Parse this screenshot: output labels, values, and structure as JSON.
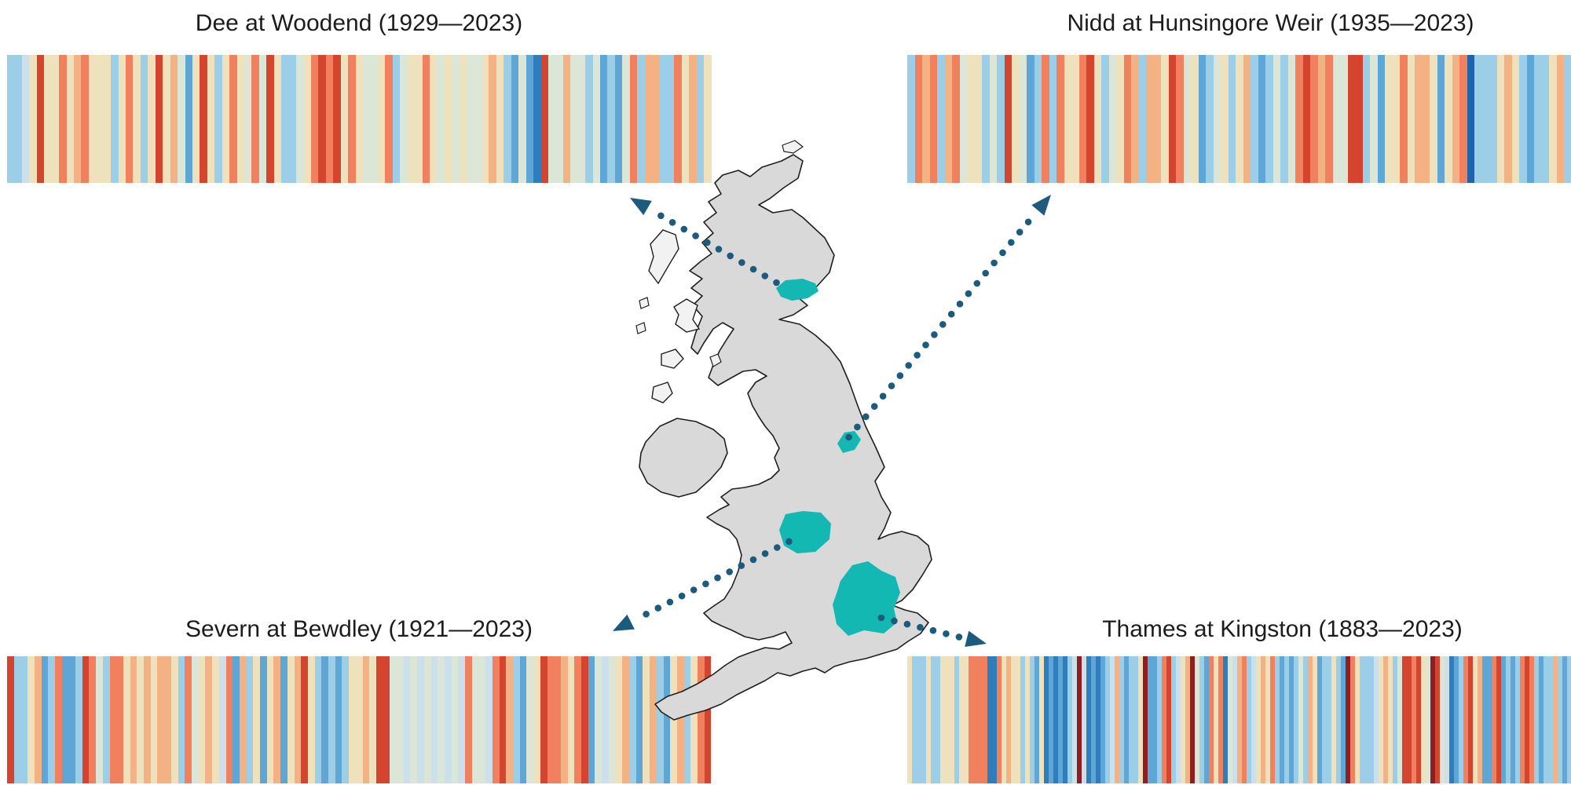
{
  "figure": {
    "title_color": "#1c1c1c",
    "background": "#ffffff",
    "arrow_color": "#1d5b7e",
    "map": {
      "land_fill": "#d9d9d9",
      "island_fill": "#f2f2f2",
      "coast_stroke": "#1f1f1f",
      "catchment_fill": "#14b8b2",
      "catchments": [
        "dee",
        "nidd",
        "severn",
        "thames"
      ]
    },
    "arrows": [
      {
        "from": "dee-catchment",
        "to": "dee-chart"
      },
      {
        "from": "nidd-catchment",
        "to": "nidd-chart"
      },
      {
        "from": "severn-catchment",
        "to": "severn-chart"
      },
      {
        "from": "thames-catchment",
        "to": "thames-chart"
      }
    ]
  },
  "palette": {
    "R4": "#8f1d21",
    "R3": "#d5442e",
    "R2": "#f0805e",
    "R1": "#f4b183",
    "C": "#efe1bb",
    "G": "#dbe6d6",
    "B0": "#cbe0eb",
    "B1": "#9ccee7",
    "B2": "#5da6d6",
    "B3": "#2f7dba",
    "B4": "#2163ab"
  },
  "chart_data": [
    {
      "type": "stripes",
      "id": "dee",
      "title": "Dee at Woodend (1929—2023)",
      "station": "Dee at Woodend",
      "start_year": 1929,
      "end_year": 2023,
      "n_years": 95,
      "stripes": [
        "B1",
        "B1",
        "B0",
        "C",
        "R3",
        "C",
        "C",
        "R2",
        "C",
        "R1",
        "R2",
        "C",
        "C",
        "C",
        "B1",
        "C",
        "R2",
        "C",
        "B1",
        "C",
        "R3",
        "C",
        "R1",
        "G",
        "B2",
        "C",
        "R3",
        "C",
        "B1",
        "C",
        "R2",
        "C",
        "G",
        "R2",
        "G",
        "R3",
        "C",
        "B1",
        "B1",
        "G",
        "C",
        "R2",
        "R3",
        "R2",
        "R3",
        "C",
        "R2",
        "C",
        "G",
        "G",
        "C",
        "R2",
        "B1",
        "G",
        "C",
        "C",
        "R2",
        "C",
        "G",
        "C",
        "G",
        "C",
        "G",
        "G",
        "C",
        "R1",
        "C",
        "B1",
        "B2",
        "G",
        "B2",
        "B3",
        "R3",
        "G",
        "G",
        "R1",
        "G",
        "G",
        "B1",
        "G",
        "B2",
        "B1",
        "B2",
        "G",
        "R2",
        "B1",
        "R1",
        "R1",
        "B1",
        "B1",
        "R2",
        "C",
        "R1",
        "B1",
        "C"
      ]
    },
    {
      "type": "stripes",
      "id": "nidd",
      "title": "Nidd at Hunsingore Weir (1935—2023)",
      "station": "Nidd at Hunsingore Weir",
      "start_year": 1935,
      "end_year": 2023,
      "n_years": 89,
      "stripes": [
        "B1",
        "R2",
        "R1",
        "R2",
        "B1",
        "R1",
        "R2",
        "G",
        "C",
        "C",
        "B1",
        "G",
        "B1",
        "R3",
        "C",
        "G",
        "B2",
        "B1",
        "R2",
        "B1",
        "R2",
        "C",
        "C",
        "R2",
        "R3",
        "C",
        "B1",
        "G",
        "C",
        "R2",
        "R1",
        "B1",
        "R1",
        "R1",
        "C",
        "R3",
        "R2",
        "G",
        "C",
        "B2",
        "B1",
        "G",
        "C",
        "B1",
        "C",
        "R1",
        "B1",
        "B2",
        "B1",
        "G",
        "B1",
        "G",
        "R2",
        "R3",
        "R2",
        "R1",
        "R2",
        "G",
        "G",
        "R3",
        "R3",
        "B1",
        "G",
        "B2",
        "C",
        "C",
        "R2",
        "C",
        "R1",
        "R1",
        "C",
        "B2",
        "C",
        "R1",
        "R2",
        "B4",
        "B1",
        "B1",
        "B1",
        "C",
        "R1",
        "C",
        "B1",
        "B2",
        "B1",
        "B1",
        "C",
        "R1",
        "B1"
      ]
    },
    {
      "type": "stripes",
      "id": "severn",
      "title": "Severn at Bewdley (1921—2023)",
      "station": "Severn at Bewdley",
      "start_year": 1921,
      "end_year": 2023,
      "n_years": 103,
      "stripes": [
        "R3",
        "B1",
        "B1",
        "C",
        "R1",
        "B2",
        "B1",
        "R2",
        "B2",
        "B2",
        "B1",
        "R3",
        "R2",
        "G",
        "B1",
        "R2",
        "R2",
        "C",
        "R1",
        "C",
        "R1",
        "C",
        "R1",
        "R1",
        "C",
        "B1",
        "R2",
        "G",
        "C",
        "R1",
        "C",
        "B0",
        "R2",
        "B2",
        "R1",
        "B1",
        "C",
        "B2",
        "C",
        "R1",
        "B2",
        "C",
        "R1",
        "R3",
        "C",
        "B1",
        "B2",
        "B1",
        "B2",
        "B1",
        "C",
        "C",
        "R1",
        "C",
        "R3",
        "R3",
        "G",
        "G",
        "B0",
        "G",
        "B0",
        "G",
        "B0",
        "G",
        "B0",
        "G",
        "B0",
        "R2",
        "G",
        "G",
        "B0",
        "R2",
        "R3",
        "R1",
        "B1",
        "B2",
        "G",
        "C",
        "R3",
        "R2",
        "R2",
        "R1",
        "C",
        "R2",
        "R3",
        "B2",
        "G",
        "B0",
        "G",
        "C",
        "R1",
        "B1",
        "B2",
        "C",
        "R1",
        "B1",
        "B2",
        "C",
        "R1",
        "B1",
        "C",
        "R2",
        "R3"
      ]
    },
    {
      "type": "stripes",
      "id": "thames",
      "title": "Thames at Kingston (1883—2023)",
      "station": "Thames at Kingston",
      "start_year": 1883,
      "end_year": 2023,
      "n_years": 141,
      "stripes": [
        "C",
        "B1",
        "B1",
        "B1",
        "C",
        "B1",
        "B1",
        "C",
        "C",
        "C",
        "B1",
        "C",
        "C",
        "R2",
        "R2",
        "R2",
        "R2",
        "B3",
        "B3",
        "R2",
        "C",
        "R1",
        "C",
        "C",
        "B1",
        "C",
        "B1",
        "B2",
        "C",
        "B3",
        "B2",
        "B3",
        "B2",
        "B3",
        "B1",
        "B0",
        "R4",
        "B0",
        "B3",
        "B2",
        "B3",
        "B2",
        "B1",
        "B0",
        "R1",
        "B1",
        "B2",
        "B1",
        "B1",
        "C",
        "R4",
        "B2",
        "B2",
        "B1",
        "R2",
        "R3",
        "B1",
        "B0",
        "C",
        "R1",
        "R4",
        "G",
        "B1",
        "B2",
        "R2",
        "C",
        "R2",
        "B3",
        "G",
        "B0",
        "R1",
        "R2",
        "B1",
        "B0",
        "C",
        "R1",
        "C",
        "R2",
        "B1",
        "B2",
        "B1",
        "B2",
        "B1",
        "G",
        "B1",
        "R1",
        "C",
        "B2",
        "B1",
        "B1",
        "C",
        "B1",
        "B2",
        "R4",
        "R2",
        "C",
        "B1",
        "B1",
        "B1",
        "B0",
        "C",
        "R1",
        "C",
        "B1",
        "G",
        "R3",
        "R3",
        "R2",
        "R3",
        "C",
        "G",
        "R4",
        "R3",
        "G",
        "B0",
        "B3",
        "B2",
        "B1",
        "R2",
        "R3",
        "C",
        "R1",
        "B2",
        "B2",
        "R2",
        "R3",
        "B2",
        "B1",
        "B2",
        "B1",
        "R2",
        "R3",
        "R2",
        "B1",
        "B2",
        "B1",
        "B1",
        "R1",
        "B1",
        "B2",
        "B1"
      ]
    }
  ]
}
